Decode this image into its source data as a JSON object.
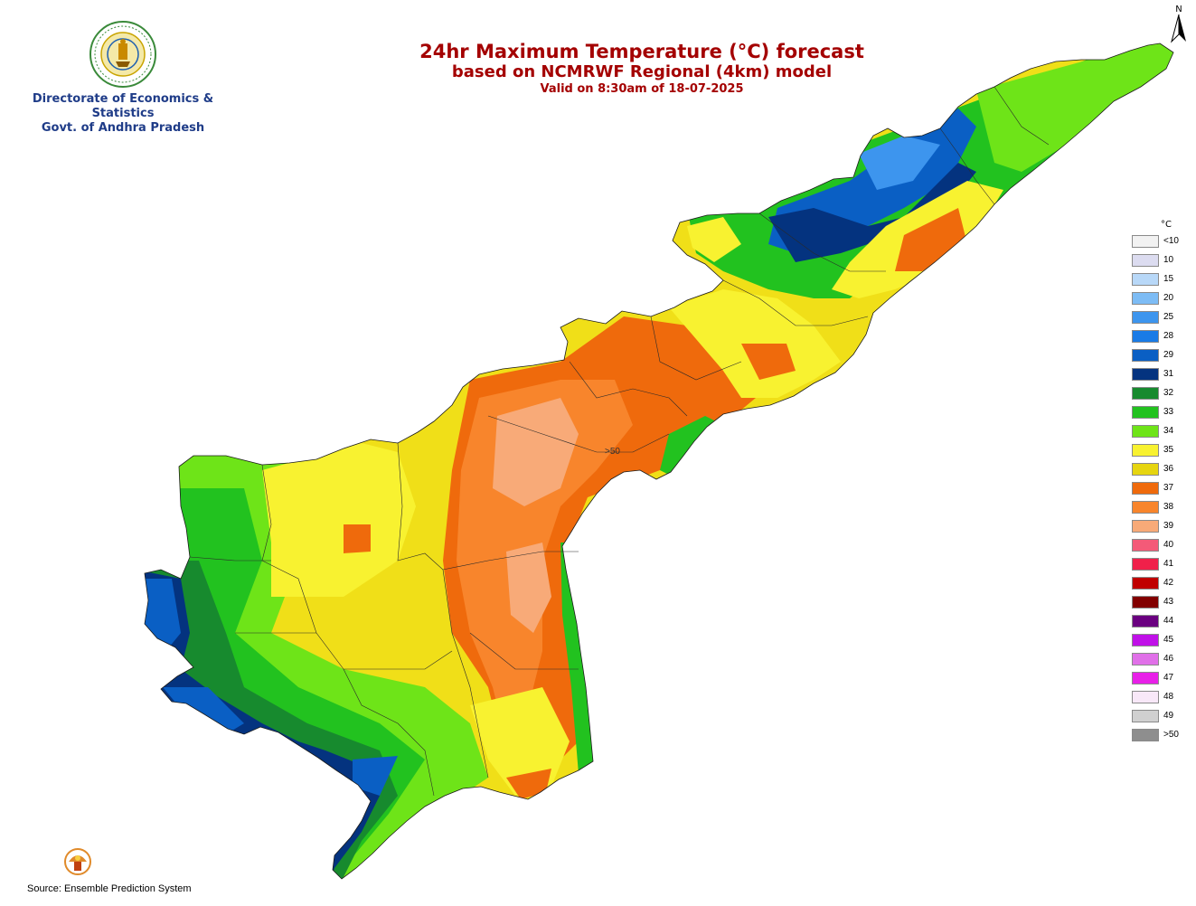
{
  "header": {
    "org_line1": "Directorate of Economics & Statistics",
    "org_line2": "Govt. of Andhra Pradesh",
    "title": "24hr Maximum Temperature (°C) forecast",
    "subtitle": "based on NCMRWF Regional (4km) model",
    "valid": "Valid on 8:30am of 18-07-2025"
  },
  "north_arrow": {
    "label": "N",
    "icon": "north-arrow-icon"
  },
  "map": {
    "marker_text": ">50"
  },
  "legend": {
    "unit": "°C",
    "items": [
      {
        "label": "<10",
        "color": "#f2f2f2"
      },
      {
        "label": "10",
        "color": "#dcdcf0"
      },
      {
        "label": "15",
        "color": "#b8d8f8"
      },
      {
        "label": "20",
        "color": "#7dbcf5"
      },
      {
        "label": "25",
        "color": "#3d95ee"
      },
      {
        "label": "28",
        "color": "#1a7be6"
      },
      {
        "label": "29",
        "color": "#0a5fc4"
      },
      {
        "label": "31",
        "color": "#04337f"
      },
      {
        "label": "32",
        "color": "#178a2e"
      },
      {
        "label": "33",
        "color": "#22c21f"
      },
      {
        "label": "34",
        "color": "#6ee418"
      },
      {
        "label": "35",
        "color": "#f8f230"
      },
      {
        "label": "36",
        "color": "#e6d510"
      },
      {
        "label": "37",
        "color": "#ef6a0c"
      },
      {
        "label": "38",
        "color": "#f8852c"
      },
      {
        "label": "39",
        "color": "#f8aa78"
      },
      {
        "label": "40",
        "color": "#f45a78"
      },
      {
        "label": "41",
        "color": "#f0204a"
      },
      {
        "label": "42",
        "color": "#c00000"
      },
      {
        "label": "43",
        "color": "#820000"
      },
      {
        "label": "44",
        "color": "#6a0080"
      },
      {
        "label": "45",
        "color": "#c010e8"
      },
      {
        "label": "46",
        "color": "#e070e8"
      },
      {
        "label": "47",
        "color": "#e820e8"
      },
      {
        "label": "48",
        "color": "#f8e8f8"
      },
      {
        "label": "49",
        "color": "#d0d0d0"
      },
      {
        "label": ">50",
        "color": "#8e8e8e"
      }
    ]
  },
  "footer": {
    "source": "Source: Ensemble Prediction System"
  }
}
